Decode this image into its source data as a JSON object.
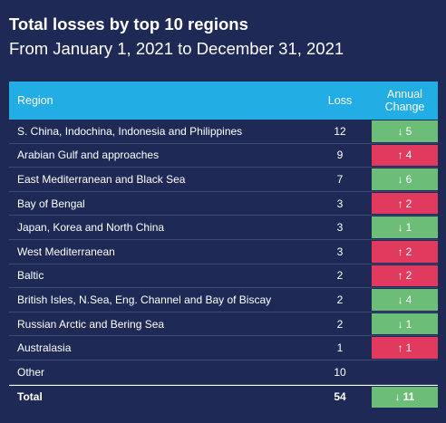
{
  "chart_data": {
    "type": "table",
    "title": "Total losses by top 10 regions",
    "subtitle": "From January 1, 2021 to December 31, 2021",
    "columns": {
      "region": "Region",
      "loss": "Loss",
      "change_line1": "Annual",
      "change_line2": "Change"
    },
    "rows": [
      {
        "region": "S. China, Indochina, Indonesia and Philippines",
        "loss": "12",
        "direction": "down",
        "change": "5"
      },
      {
        "region": "Arabian Gulf and approaches",
        "loss": "9",
        "direction": "up",
        "change": "4"
      },
      {
        "region": "East Mediterranean and Black Sea",
        "loss": "7",
        "direction": "down",
        "change": "6"
      },
      {
        "region": "Bay of Bengal",
        "loss": "3",
        "direction": "up",
        "change": "2"
      },
      {
        "region": "Japan, Korea and North China",
        "loss": "3",
        "direction": "down",
        "change": "1"
      },
      {
        "region": "West Mediterranean",
        "loss": "3",
        "direction": "up",
        "change": "2"
      },
      {
        "region": "Baltic",
        "loss": "2",
        "direction": "up",
        "change": "2"
      },
      {
        "region": "British Isles, N.Sea, Eng. Channel and Bay of Biscay",
        "loss": "2",
        "direction": "down",
        "change": "4"
      },
      {
        "region": "Russian Arctic and Bering Sea",
        "loss": "2",
        "direction": "down",
        "change": "1"
      },
      {
        "region": "Australasia",
        "loss": "1",
        "direction": "up",
        "change": "1"
      },
      {
        "region": "Other",
        "loss": "10",
        "direction": "none",
        "change": ""
      }
    ],
    "total": {
      "label": "Total",
      "loss": "54",
      "direction": "down",
      "change": "11"
    }
  },
  "colors": {
    "background": "#1e2a55",
    "header": "#22aee4",
    "decrease": "#6bbd78",
    "increase": "#e23a5f"
  },
  "icons": {
    "down": "↓",
    "up": "↑"
  }
}
